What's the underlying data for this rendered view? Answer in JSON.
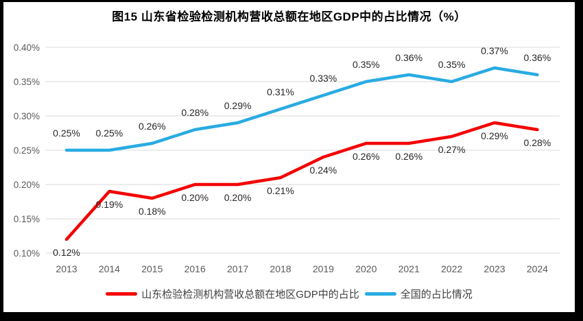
{
  "title": "图15  山东省检验检测机构营收总额在地区GDP中的占比情况（%）",
  "chart_data": {
    "type": "line",
    "categories": [
      "2013",
      "2014",
      "2015",
      "2016",
      "2017",
      "2018",
      "2019",
      "2020",
      "2021",
      "2022",
      "2023",
      "2024"
    ],
    "series": [
      {
        "name": "山东检验检测机构营收总额在地区GDP中的占比",
        "color": "#F40000",
        "label_position": "below",
        "values": [
          0.12,
          0.19,
          0.18,
          0.2,
          0.2,
          0.21,
          0.24,
          0.26,
          0.26,
          0.27,
          0.29,
          0.28
        ],
        "labels": [
          "0.12%",
          "0.19%",
          "0.18%",
          "0.20%",
          "0.20%",
          "0.21%",
          "0.24%",
          "0.26%",
          "0.26%",
          "0.27%",
          "0.29%",
          "0.28%"
        ]
      },
      {
        "name": "全国的占比情况",
        "color": "#29ABE2",
        "label_position": "above",
        "values": [
          0.25,
          0.25,
          0.26,
          0.28,
          0.29,
          0.31,
          0.33,
          0.35,
          0.36,
          0.35,
          0.37,
          0.36
        ],
        "labels": [
          "0.25%",
          "0.25%",
          "0.26%",
          "0.28%",
          "0.29%",
          "0.31%",
          "0.33%",
          "0.35%",
          "0.36%",
          "0.35%",
          "0.37%",
          "0.36%"
        ]
      }
    ],
    "y_axis": {
      "ticks": [
        "0.40%",
        "0.35%",
        "0.30%",
        "0.25%",
        "0.20%",
        "0.15%",
        "0.10%"
      ],
      "min": 0.1,
      "max": 0.4
    },
    "x_axis_label": "",
    "grid": "horizontal",
    "legend_position": "bottom",
    "colors": {
      "grid": "#D9D9D9",
      "axis_text": "#595959",
      "label_text": "#262626",
      "title_text": "#000000"
    }
  }
}
